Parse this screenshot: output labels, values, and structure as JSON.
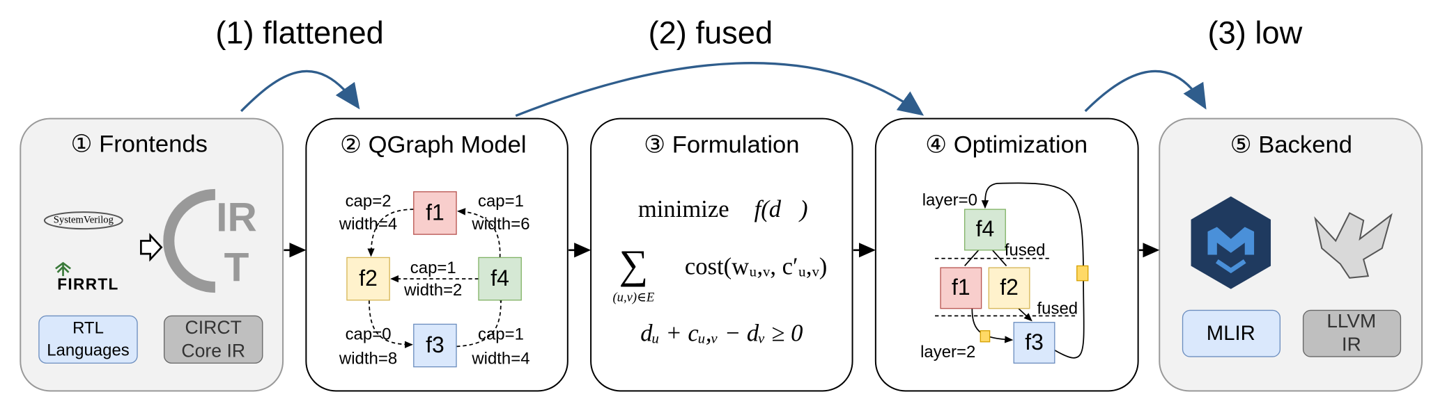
{
  "stage_labels": [
    "(1) flattened",
    "(2) fused",
    "(3) low"
  ],
  "frontends": {
    "title": "① Frontends",
    "logo_systemverilog": "SystemVerilog",
    "logo_firrtl": "FIRRTL",
    "circt_logo": [
      "IR",
      "T"
    ],
    "box_rtl": [
      "RTL",
      "Languages"
    ],
    "box_circt": [
      "CIRCT",
      "Core IR"
    ]
  },
  "qgraph": {
    "title": "② QGraph Model",
    "nodes": [
      "f1",
      "f2",
      "f3",
      "f4"
    ],
    "edge_labels": [
      [
        "cap=2",
        "width=4"
      ],
      [
        "cap=1",
        "width=6"
      ],
      [
        "cap=1",
        "width=2"
      ],
      [
        "cap=0",
        "width=8"
      ],
      [
        "cap=1",
        "width=4"
      ]
    ]
  },
  "formulation": {
    "title": "③ Formulation",
    "objective_word": "minimize",
    "objective_fn": "f(d⃗)",
    "sum_symbol": "∑",
    "sum_index": "(u,v)∈E",
    "sum_term": "cost(wᵤ,ᵥ, c′ᵤ,ᵥ)",
    "constraint": "dᵤ + cᵤ,ᵥ − dᵥ ≥ 0"
  },
  "optimization": {
    "title": "④ Optimization",
    "nodes": [
      "f4",
      "f1",
      "f2",
      "f3"
    ],
    "layer_top": "layer=0",
    "layer_bottom": "layer=2",
    "fused_labels": [
      "fused",
      "fused"
    ]
  },
  "backend": {
    "title": "⑤ Backend",
    "box_mlir": "MLIR",
    "box_llvm": [
      "LLVM",
      "IR"
    ]
  }
}
